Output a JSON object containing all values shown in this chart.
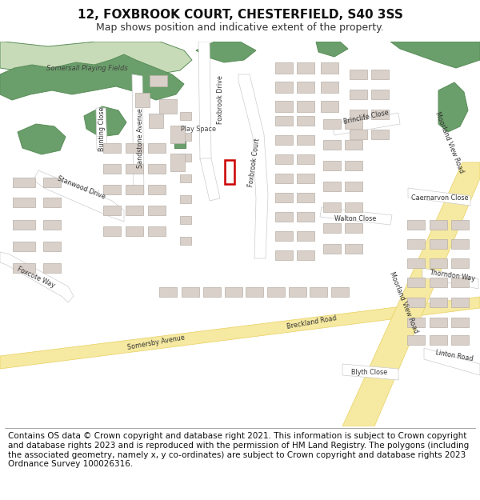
{
  "title": "12, FOXBROOK COURT, CHESTERFIELD, S40 3SS",
  "subtitle": "Map shows position and indicative extent of the property.",
  "footer": "Contains OS data © Crown copyright and database right 2021. This information is subject to Crown copyright and database rights 2023 and is reproduced with the permission of HM Land Registry. The polygons (including the associated geometry, namely x, y co-ordinates) are subject to Crown copyright and database rights 2023 Ordnance Survey 100026316.",
  "map_bg": "#f2f0eb",
  "road_major_color": "#f6e9a1",
  "road_major_edge": "#e8d060",
  "road_minor_color": "#ffffff",
  "road_minor_edge": "#cccccc",
  "building_color": "#d9d0c9",
  "building_edge": "#b8b0a8",
  "green_light": "#c8dbb8",
  "green_dark": "#6a9e6a",
  "green_edge": "#5a8e5a",
  "marker_color": "#cc0000",
  "label_color": "#333333",
  "title_fontsize": 11,
  "subtitle_fontsize": 9,
  "footer_fontsize": 7.5,
  "label_fontsize": 5.8
}
